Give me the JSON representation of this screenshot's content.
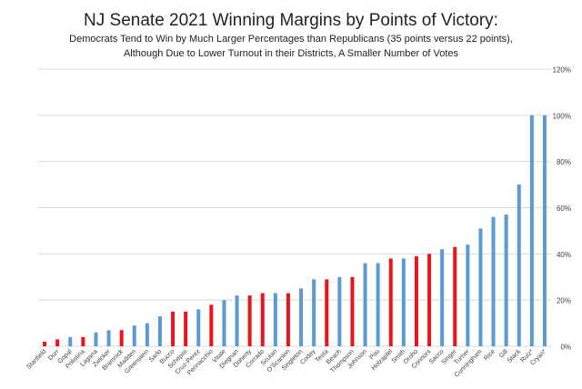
{
  "chart_data": {
    "type": "bar",
    "title": "NJ Senate 2021 Winning Margins by Points of Victory:",
    "subtitle_lines": [
      "Democrats Tend to Win by Much Larger Percentages than Republicans (35 points versus 22 points),",
      "Although Due to Lower Turnout in their Districts, A Smaller Number of Votes"
    ],
    "xlabel": "",
    "ylabel": "",
    "ylim": [
      0,
      120
    ],
    "yticks": [
      0,
      20,
      40,
      60,
      80,
      100,
      120
    ],
    "ytick_labels": [
      "0%",
      "20%",
      "40%",
      "60%",
      "80%",
      "100%",
      "120%"
    ],
    "y_axis_position": "right",
    "grid": true,
    "legend": "none",
    "colors": {
      "democrat": "#5B9BD5",
      "republican": "#E8151D",
      "grid": "#D9D9D9",
      "text": "#404040"
    },
    "categories": [
      "Stanfield",
      "Durr",
      "Gopal",
      "Polistina",
      "Lagana",
      "Zwicker",
      "Bramnick",
      "Madden",
      "Greenstein",
      "Sarlo",
      "Bucco",
      "Schepisi",
      "Cruz-Perez",
      "Pennacchio",
      "Vitale",
      "Diegnan",
      "Doherty",
      "Corrado",
      "Scutari",
      "O'Scanlon",
      "Singleton",
      "Codey",
      "Testa",
      "Beach",
      "Thompson",
      "Johnson",
      "Pou",
      "Holzapfel",
      "Smith",
      "Oroho",
      "Connors",
      "Sacco",
      "Singer",
      "Turner",
      "Cunningham",
      "Rice",
      "Gill",
      "Stack",
      "Ruiz*",
      "Cryan*"
    ],
    "parties": [
      "R",
      "R",
      "D",
      "R",
      "D",
      "D",
      "R",
      "D",
      "D",
      "D",
      "R",
      "R",
      "D",
      "R",
      "D",
      "D",
      "R",
      "R",
      "D",
      "R",
      "D",
      "D",
      "R",
      "D",
      "R",
      "D",
      "D",
      "R",
      "D",
      "R",
      "R",
      "D",
      "R",
      "D",
      "D",
      "D",
      "D",
      "D",
      "D",
      "D"
    ],
    "values": [
      2,
      3,
      4,
      4,
      6,
      7,
      7,
      9,
      10,
      13,
      15,
      15,
      16,
      18,
      20,
      22,
      22,
      23,
      23,
      23,
      25,
      29,
      29,
      30,
      30,
      36,
      36,
      38,
      38,
      39,
      40,
      42,
      43,
      44,
      51,
      56,
      57,
      70,
      100,
      100
    ]
  }
}
